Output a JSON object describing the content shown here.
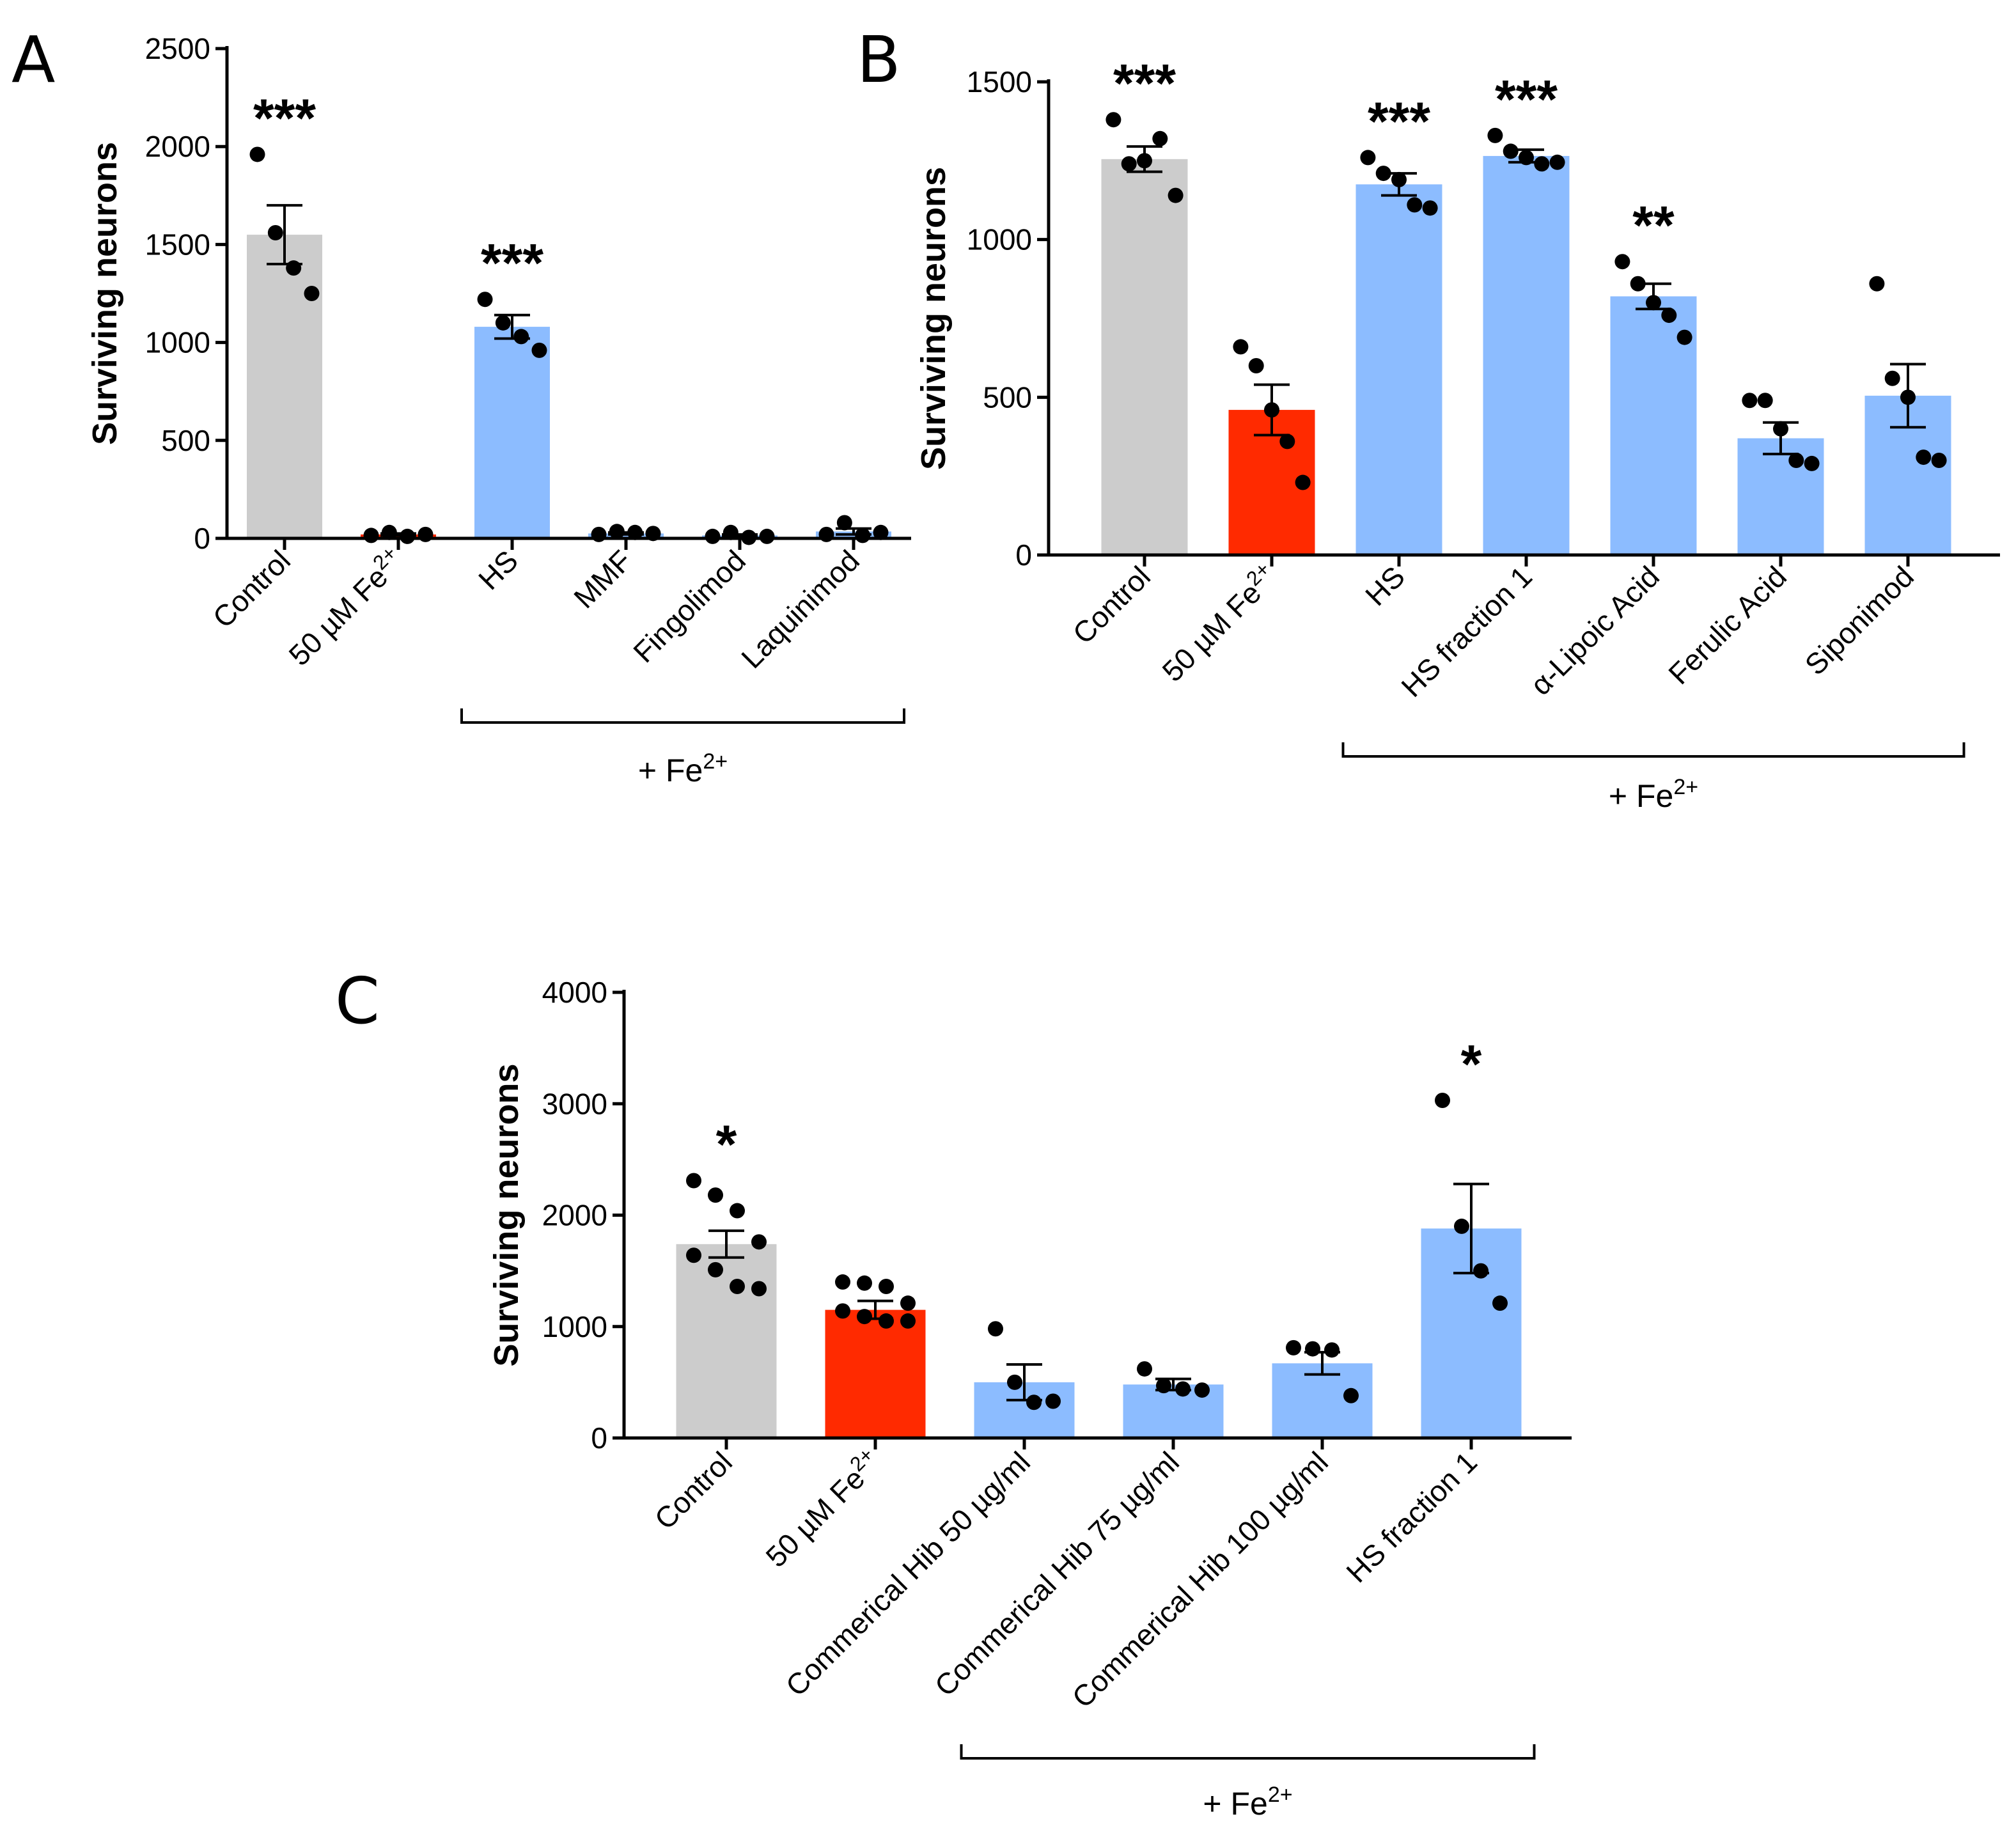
{
  "colors": {
    "control": "#cccccc",
    "fe": "#ff2a00",
    "treatment": "#8cbcff",
    "point": "#000000"
  },
  "chart_data": [
    {
      "panel": "A",
      "type": "bar",
      "ylabel": "Surviving neurons",
      "ylim": [
        0,
        2500
      ],
      "yticks": [
        0,
        500,
        1000,
        1500,
        2000,
        2500
      ],
      "group_label": "+ Fe",
      "group_label_sup": "2+",
      "group_span": [
        2,
        5
      ],
      "bars": [
        {
          "label": "Control",
          "label_sup": "",
          "value": 1550,
          "sem": 150,
          "color": "control",
          "stars": "***",
          "points": [
            1960,
            1560,
            1380,
            1250
          ]
        },
        {
          "label": "50 µM Fe",
          "label_sup": "2+",
          "value": 20,
          "sem": 5,
          "color": "fe",
          "stars": "",
          "points": [
            15,
            30,
            10,
            20
          ]
        },
        {
          "label": "HS",
          "label_sup": "",
          "value": 1080,
          "sem": 60,
          "color": "treatment",
          "stars": "***",
          "points": [
            1220,
            1100,
            1030,
            960
          ]
        },
        {
          "label": "MMF",
          "label_sup": "",
          "value": 25,
          "sem": 5,
          "color": "treatment",
          "stars": "",
          "points": [
            20,
            35,
            30,
            25
          ]
        },
        {
          "label": "Fingolimod",
          "label_sup": "",
          "value": 15,
          "sem": 5,
          "color": "treatment",
          "stars": "",
          "points": [
            10,
            30,
            5,
            10
          ]
        },
        {
          "label": "Laquinimod",
          "label_sup": "",
          "value": 35,
          "sem": 15,
          "color": "treatment",
          "stars": "",
          "points": [
            20,
            80,
            15,
            30
          ]
        }
      ]
    },
    {
      "panel": "B",
      "type": "bar",
      "ylabel": "Surviving neurons",
      "ylim": [
        0,
        1500
      ],
      "yticks": [
        0,
        500,
        1000,
        1500
      ],
      "group_label": "+ Fe",
      "group_label_sup": "2+",
      "group_span": [
        2,
        6
      ],
      "bars": [
        {
          "label": "Control",
          "label_sup": "",
          "value": 1255,
          "sem": 40,
          "color": "control",
          "stars": "***",
          "points": [
            1380,
            1240,
            1250,
            1320,
            1140
          ]
        },
        {
          "label": "50 µM Fe",
          "label_sup": "2+",
          "value": 460,
          "sem": 80,
          "color": "fe",
          "stars": "",
          "points": [
            660,
            600,
            460,
            360,
            230
          ]
        },
        {
          "label": "HS",
          "label_sup": "",
          "value": 1175,
          "sem": 35,
          "color": "treatment",
          "stars": "***",
          "points": [
            1260,
            1210,
            1190,
            1110,
            1100
          ]
        },
        {
          "label": "HS fraction 1",
          "label_sup": "",
          "value": 1265,
          "sem": 20,
          "color": "treatment",
          "stars": "***",
          "points": [
            1330,
            1280,
            1260,
            1240,
            1245
          ]
        },
        {
          "label": "α-Lipoic Acid",
          "label_sup": "",
          "value": 820,
          "sem": 40,
          "color": "treatment",
          "stars": "**",
          "points": [
            930,
            860,
            800,
            760,
            690
          ]
        },
        {
          "label": "Ferulic Acid",
          "label_sup": "",
          "value": 370,
          "sem": 50,
          "color": "treatment",
          "stars": "",
          "points": [
            490,
            490,
            400,
            300,
            290
          ]
        },
        {
          "label": "Siponimod",
          "label_sup": "",
          "value": 505,
          "sem": 100,
          "color": "treatment",
          "stars": "",
          "points": [
            860,
            560,
            500,
            310,
            300
          ]
        }
      ]
    },
    {
      "panel": "C",
      "type": "bar",
      "ylabel": "Surviving neurons",
      "ylim": [
        0,
        4000
      ],
      "yticks": [
        0,
        1000,
        2000,
        3000,
        4000
      ],
      "group_label": "+ Fe",
      "group_label_sup": "2+",
      "group_span": [
        2,
        5
      ],
      "bars": [
        {
          "label": "Control",
          "label_sup": "",
          "value": 1740,
          "sem": 120,
          "color": "control",
          "stars": "*",
          "points": [
            2310,
            2180,
            2040,
            1760,
            1640,
            1510,
            1360,
            1340
          ]
        },
        {
          "label": "50 µM Fe",
          "label_sup": "2+",
          "value": 1150,
          "sem": 80,
          "color": "fe",
          "stars": "",
          "points": [
            1400,
            1390,
            1360,
            1210,
            1140,
            1090,
            1050,
            1050
          ]
        },
        {
          "label": "Commerical Hib 50 µg/ml",
          "label_sup": "",
          "value": 500,
          "sem": 160,
          "color": "treatment",
          "stars": "",
          "points": [
            980,
            500,
            320,
            330
          ]
        },
        {
          "label": "Commerical Hib 75 µg/ml",
          "label_sup": "",
          "value": 480,
          "sem": 50,
          "color": "treatment",
          "stars": "",
          "points": [
            620,
            470,
            440,
            430
          ]
        },
        {
          "label": "Commerical Hib 100 µg/ml",
          "label_sup": "",
          "value": 670,
          "sem": 100,
          "color": "treatment",
          "stars": "",
          "points": [
            810,
            800,
            790,
            380
          ]
        },
        {
          "label": "HS fraction 1",
          "label_sup": "",
          "value": 1880,
          "sem": 400,
          "color": "treatment",
          "stars": "*",
          "points": [
            3030,
            1900,
            1500,
            1210
          ]
        }
      ]
    }
  ]
}
